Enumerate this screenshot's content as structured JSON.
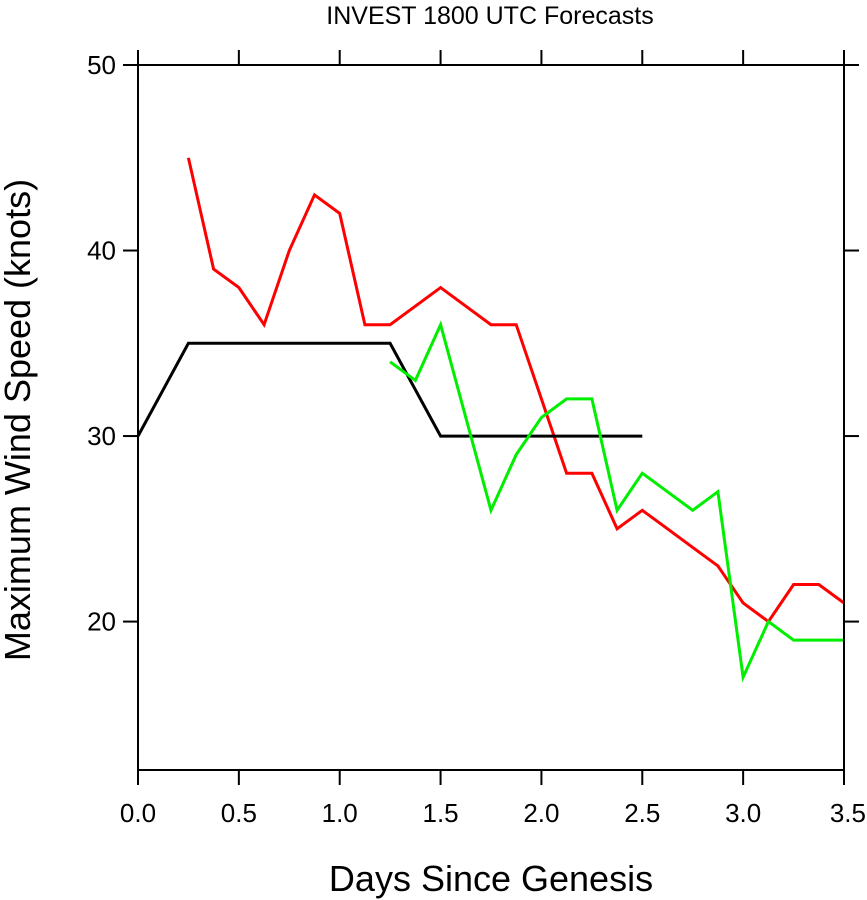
{
  "chart_data": {
    "type": "line",
    "title": "INVEST 1800 UTC Forecasts",
    "xlabel": "Days Since Genesis",
    "ylabel": "Maximum Wind Speed (knots)",
    "xlim": [
      0,
      3.5
    ],
    "ylim": [
      12,
      50
    ],
    "xticks": [
      "0.0",
      "0.5",
      "1.0",
      "1.5",
      "2.0",
      "2.5",
      "3.0",
      "3.5"
    ],
    "xtick_values": [
      0,
      0.5,
      1.0,
      1.5,
      2.0,
      2.5,
      3.0,
      3.5
    ],
    "yticks": [
      "20",
      "30",
      "40",
      "50"
    ],
    "ytick_values": [
      20,
      30,
      40,
      50
    ],
    "grid": false,
    "legend": "none",
    "series": [
      {
        "color": "#ff0000",
        "x": [
          0.25,
          0.375,
          0.5,
          0.625,
          0.75,
          0.875,
          1.0,
          1.125,
          1.25,
          1.5,
          1.75,
          1.875,
          2.0,
          2.125,
          2.25,
          2.375,
          2.5,
          2.625,
          2.75,
          2.875,
          3.0,
          3.125,
          3.25,
          3.375,
          3.5
        ],
        "y": [
          45,
          39,
          38,
          36,
          40,
          43,
          42,
          36,
          36,
          38,
          36,
          36,
          32,
          28,
          28,
          25,
          26,
          25,
          24,
          23,
          21,
          20,
          22,
          22,
          21
        ]
      },
      {
        "color": "#000000",
        "x": [
          0.0,
          0.25,
          1.25,
          1.5,
          2.5
        ],
        "y": [
          30,
          35,
          35,
          30,
          30
        ]
      },
      {
        "color": "#00ee00",
        "x": [
          1.25,
          1.375,
          1.5,
          1.75,
          1.875,
          2.0,
          2.125,
          2.25,
          2.375,
          2.5,
          2.75,
          2.875,
          3.0,
          3.125,
          3.25,
          3.375,
          3.5
        ],
        "y": [
          34,
          33,
          36,
          26,
          29,
          31,
          32,
          32,
          26,
          28,
          26,
          27,
          17,
          20,
          19,
          19,
          19
        ]
      }
    ]
  }
}
